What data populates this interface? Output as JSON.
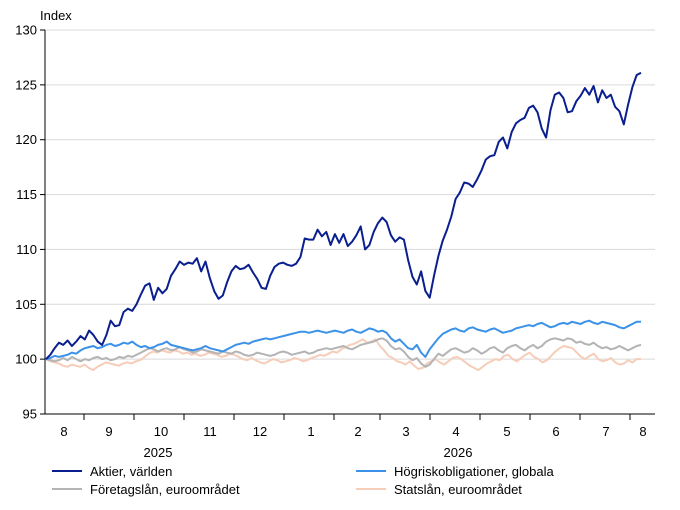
{
  "chart_data": {
    "type": "line",
    "ylabel": "Index",
    "ylim": [
      95,
      130
    ],
    "yticks": [
      95,
      100,
      105,
      110,
      115,
      120,
      125,
      130
    ],
    "x_month_labels": [
      "8",
      "9",
      "10",
      "11",
      "12",
      "1",
      "2",
      "3",
      "4",
      "5",
      "6",
      "7",
      "8"
    ],
    "x_year_labels": [
      "2025",
      "2026"
    ],
    "grid": true,
    "legend_position": "bottom",
    "series": [
      {
        "name": "Aktier, världen",
        "color": "#0a1f8f",
        "values": [
          100.0,
          100.4,
          101.0,
          101.5,
          101.3,
          101.7,
          101.2,
          101.6,
          102.1,
          101.8,
          102.6,
          102.2,
          101.6,
          101.3,
          102.2,
          103.5,
          103.0,
          103.1,
          104.3,
          104.6,
          104.4,
          105.0,
          105.9,
          106.7,
          106.9,
          105.4,
          106.5,
          106.0,
          106.4,
          107.6,
          108.2,
          108.9,
          108.6,
          108.8,
          108.7,
          109.2,
          108.0,
          108.9,
          107.4,
          106.2,
          105.5,
          105.8,
          107.0,
          108.0,
          108.5,
          108.2,
          108.3,
          108.6,
          107.9,
          107.3,
          106.5,
          106.4,
          107.6,
          108.4,
          108.7,
          108.8,
          108.6,
          108.5,
          108.7,
          109.3,
          111.0,
          110.9,
          110.9,
          111.8,
          111.2,
          111.6,
          110.4,
          111.4,
          110.6,
          111.4,
          110.3,
          110.7,
          111.3,
          112.1,
          110.0,
          110.4,
          111.6,
          112.4,
          112.9,
          112.5,
          111.3,
          110.7,
          111.1,
          110.9,
          109.0,
          107.5,
          106.8,
          108.0,
          106.2,
          105.6,
          107.6,
          109.4,
          110.8,
          111.8,
          113.0,
          114.6,
          115.2,
          116.1,
          116.0,
          115.7,
          116.4,
          117.2,
          118.2,
          118.5,
          118.6,
          119.8,
          120.2,
          119.2,
          120.7,
          121.5,
          121.8,
          122.0,
          122.9,
          123.1,
          122.5,
          121.0,
          120.2,
          122.7,
          124.1,
          124.3,
          123.8,
          122.5,
          122.6,
          123.5,
          124.0,
          124.7,
          124.1,
          124.9,
          123.4,
          124.5,
          123.8,
          124.1,
          123.0,
          122.6,
          121.4,
          123.2,
          124.8,
          125.9,
          126.1
        ]
      },
      {
        "name": "Högriskobligationer, globala",
        "color": "#3b92e8",
        "values": [
          100.0,
          100.1,
          100.3,
          100.2,
          100.3,
          100.4,
          100.6,
          100.5,
          100.8,
          101.0,
          101.1,
          101.2,
          101.0,
          101.1,
          101.3,
          101.4,
          101.2,
          101.3,
          101.5,
          101.4,
          101.6,
          101.3,
          101.1,
          101.2,
          101.0,
          101.1,
          101.3,
          101.4,
          101.6,
          101.3,
          101.2,
          101.1,
          101.0,
          100.9,
          100.8,
          100.9,
          101.0,
          101.2,
          101.0,
          100.9,
          100.8,
          100.7,
          100.9,
          101.1,
          101.3,
          101.4,
          101.5,
          101.4,
          101.6,
          101.7,
          101.8,
          101.9,
          101.8,
          101.9,
          102.0,
          102.1,
          102.2,
          102.3,
          102.4,
          102.5,
          102.5,
          102.4,
          102.5,
          102.6,
          102.5,
          102.4,
          102.5,
          102.6,
          102.5,
          102.4,
          102.6,
          102.7,
          102.5,
          102.4,
          102.6,
          102.8,
          102.7,
          102.5,
          102.6,
          102.4,
          101.9,
          101.6,
          101.8,
          101.4,
          101.0,
          100.9,
          101.3,
          100.6,
          100.2,
          100.9,
          101.4,
          101.9,
          102.3,
          102.5,
          102.7,
          102.8,
          102.6,
          102.5,
          102.8,
          102.9,
          102.7,
          102.6,
          102.5,
          102.7,
          102.8,
          102.6,
          102.4,
          102.5,
          102.6,
          102.8,
          102.9,
          103.0,
          103.1,
          103.0,
          103.2,
          103.3,
          103.1,
          102.9,
          103.0,
          103.2,
          103.3,
          103.2,
          103.4,
          103.3,
          103.2,
          103.4,
          103.5,
          103.3,
          103.2,
          103.4,
          103.3,
          103.2,
          103.1,
          102.9,
          102.8,
          103.0,
          103.2,
          103.4,
          103.4
        ]
      },
      {
        "name": "Företagslån, euroområdet",
        "color": "#b4b4b4",
        "values": [
          100.0,
          99.9,
          99.8,
          99.9,
          100.1,
          99.9,
          100.2,
          100.0,
          99.8,
          100.0,
          99.9,
          100.1,
          100.2,
          100.0,
          100.1,
          99.9,
          100.0,
          100.2,
          100.1,
          100.3,
          100.2,
          100.4,
          100.6,
          100.8,
          101.0,
          100.9,
          100.7,
          100.9,
          101.0,
          100.8,
          100.9,
          101.1,
          100.9,
          100.8,
          100.6,
          100.7,
          100.9,
          100.8,
          100.7,
          100.6,
          100.5,
          100.7,
          100.6,
          100.5,
          100.7,
          100.6,
          100.4,
          100.3,
          100.4,
          100.6,
          100.5,
          100.4,
          100.3,
          100.4,
          100.6,
          100.7,
          100.6,
          100.4,
          100.5,
          100.6,
          100.7,
          100.5,
          100.6,
          100.8,
          100.9,
          101.0,
          100.9,
          101.0,
          101.1,
          101.2,
          101.0,
          100.9,
          101.1,
          101.3,
          101.4,
          101.5,
          101.6,
          101.8,
          101.9,
          101.7,
          101.2,
          100.9,
          101.0,
          100.7,
          100.2,
          99.9,
          100.1,
          99.6,
          99.3,
          99.5,
          100.0,
          100.5,
          100.3,
          100.6,
          100.9,
          101.0,
          100.8,
          100.6,
          100.7,
          101.0,
          100.8,
          100.5,
          100.7,
          101.0,
          101.1,
          100.8,
          100.6,
          101.0,
          101.2,
          101.3,
          101.0,
          100.8,
          101.1,
          101.3,
          101.0,
          101.2,
          101.6,
          101.8,
          101.9,
          101.8,
          101.7,
          101.9,
          101.8,
          101.5,
          101.6,
          101.4,
          101.3,
          101.5,
          101.2,
          101.0,
          101.1,
          100.9,
          101.0,
          101.2,
          101.0,
          100.8,
          101.0,
          101.2,
          101.3
        ]
      },
      {
        "name": "Statslån, euroområdet",
        "color": "#f5cdb8",
        "values": [
          100.0,
          99.8,
          99.7,
          99.6,
          99.4,
          99.3,
          99.5,
          99.4,
          99.3,
          99.5,
          99.2,
          99.0,
          99.3,
          99.5,
          99.7,
          99.6,
          99.5,
          99.4,
          99.6,
          99.7,
          99.6,
          99.8,
          99.9,
          100.2,
          100.5,
          100.7,
          100.6,
          100.8,
          100.7,
          100.6,
          100.8,
          100.7,
          100.5,
          100.6,
          100.4,
          100.5,
          100.3,
          100.4,
          100.6,
          100.5,
          100.4,
          100.2,
          100.3,
          100.5,
          100.4,
          100.2,
          100.0,
          99.9,
          100.1,
          99.9,
          99.7,
          99.6,
          99.8,
          100.0,
          99.9,
          99.7,
          99.8,
          99.9,
          100.1,
          100.0,
          99.8,
          99.9,
          100.1,
          100.2,
          100.4,
          100.3,
          100.5,
          100.7,
          100.6,
          100.9,
          101.1,
          101.3,
          101.4,
          101.6,
          101.8,
          101.5,
          101.6,
          101.8,
          101.2,
          100.8,
          100.3,
          100.1,
          99.8,
          99.7,
          99.5,
          99.8,
          99.4,
          99.1,
          99.2,
          99.6,
          99.8,
          100.0,
          99.7,
          99.5,
          99.8,
          100.1,
          100.2,
          100.0,
          99.7,
          99.4,
          99.2,
          99.0,
          99.3,
          99.6,
          99.8,
          100.0,
          99.9,
          100.3,
          100.4,
          100.0,
          99.8,
          100.1,
          100.4,
          100.6,
          100.2,
          100.0,
          99.7,
          99.9,
          100.3,
          100.7,
          101.0,
          101.2,
          101.1,
          101.0,
          100.6,
          100.2,
          100.0,
          100.3,
          100.5,
          100.0,
          99.8,
          99.9,
          100.1,
          99.7,
          99.5,
          99.6,
          99.9,
          99.7,
          100.0,
          100.0
        ]
      }
    ]
  }
}
